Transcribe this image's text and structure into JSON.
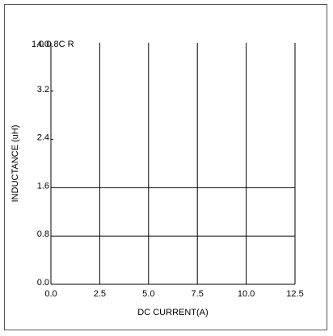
{
  "chart_data": {
    "type": "line",
    "title": "",
    "xlabel": "DC CURRENT(A)",
    "ylabel": "INDUCTANCE (uH)",
    "xlim": [
      0,
      12.5
    ],
    "ylim": [
      0,
      4.0
    ],
    "x_ticks": [
      "0.0",
      "2.5",
      "5.0",
      "7.5",
      "10.0",
      "12.5"
    ],
    "y_ticks": [
      "0.0",
      "0.8",
      "1.6",
      "2.4",
      "3.2",
      "4.0"
    ],
    "grid": true,
    "annotations": [
      "1.0 0.8C R"
    ],
    "series": []
  }
}
